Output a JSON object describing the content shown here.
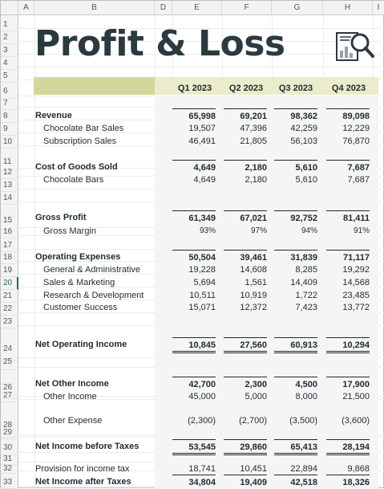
{
  "sheet": {
    "columns": [
      "A",
      "B",
      "D",
      "E",
      "F",
      "G",
      "H",
      "I"
    ],
    "rows": [
      "1",
      "2",
      "3",
      "4",
      "5",
      "6",
      "7",
      "8",
      "9",
      "10",
      "11",
      "12",
      "13",
      "14",
      "15",
      "16",
      "17",
      "18",
      "19",
      "20",
      "21",
      "22",
      "23",
      "24",
      "25",
      "26",
      "27",
      "28",
      "29",
      "30",
      "31",
      "32",
      "33"
    ],
    "active_row": "20"
  },
  "report": {
    "title": "Profit & Loss",
    "logo_icon": "report-magnifier-icon",
    "quarters": [
      "Q1 2023",
      "Q2 2023",
      "Q3 2023",
      "Q4 2023"
    ]
  },
  "lines": {
    "revenue": {
      "label": "Revenue",
      "values": [
        "65,998",
        "69,201",
        "98,362",
        "89,098"
      ]
    },
    "choc_sales": {
      "label": "Chocolate Bar Sales",
      "values": [
        "19,507",
        "47,396",
        "42,259",
        "12,229"
      ]
    },
    "sub_sales": {
      "label": "Subscription Sales",
      "values": [
        "46,491",
        "21,805",
        "56,103",
        "76,870"
      ]
    },
    "cogs": {
      "label": "Cost of Goods Sold",
      "values": [
        "4,649",
        "2,180",
        "5,610",
        "7,687"
      ]
    },
    "choc_bars": {
      "label": "Chocolate Bars",
      "values": [
        "4,649",
        "2,180",
        "5,610",
        "7,687"
      ]
    },
    "gross_profit": {
      "label": "Gross Profit",
      "values": [
        "61,349",
        "67,021",
        "92,752",
        "81,411"
      ]
    },
    "gross_margin": {
      "label": "Gross Margin",
      "values": [
        "93%",
        "97%",
        "94%",
        "91%"
      ]
    },
    "opex": {
      "label": "Operating Expenses",
      "values": [
        "50,504",
        "39,461",
        "31,839",
        "71,117"
      ]
    },
    "ga": {
      "label": "General & Administrative",
      "values": [
        "19,228",
        "14,608",
        "8,285",
        "19,292"
      ]
    },
    "sm": {
      "label": "Sales & Marketing",
      "values": [
        "5,694",
        "1,561",
        "14,409",
        "14,568"
      ]
    },
    "rd": {
      "label": "Research & Development",
      "values": [
        "10,511",
        "10,919",
        "1,722",
        "23,485"
      ]
    },
    "cs": {
      "label": "Customer Success",
      "values": [
        "15,071",
        "12,372",
        "7,423",
        "13,772"
      ]
    },
    "noi": {
      "label": "Net Operating Income",
      "values": [
        "10,845",
        "27,560",
        "60,913",
        "10,294"
      ]
    },
    "net_other": {
      "label": "Net Other Income",
      "values": [
        "42,700",
        "2,300",
        "4,500",
        "17,900"
      ]
    },
    "other_income": {
      "label": "Other Income",
      "values": [
        "45,000",
        "5,000",
        "8,000",
        "21,500"
      ]
    },
    "other_expense": {
      "label": "Other Expense",
      "values": [
        "(2,300)",
        "(2,700)",
        "(3,500)",
        "(3,600)"
      ]
    },
    "nibt": {
      "label": "Net Income before Taxes",
      "values": [
        "53,545",
        "29,860",
        "65,413",
        "28,194"
      ]
    },
    "provision": {
      "label": "Provision for income tax",
      "values": [
        "18,741",
        "10,451",
        "22,894",
        "9,868"
      ]
    },
    "niat": {
      "label": "Net Income after Taxes",
      "values": [
        "34,804",
        "19,409",
        "42,518",
        "18,326"
      ]
    }
  }
}
